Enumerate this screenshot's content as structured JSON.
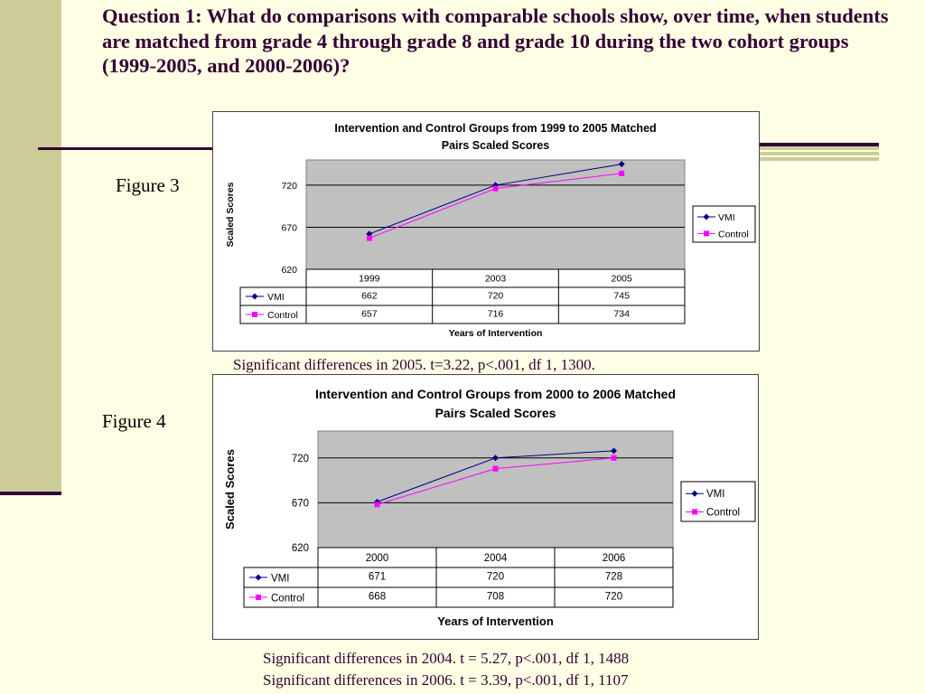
{
  "page_title": "Question 1:  What do comparisons with comparable schools show, over time, when students are matched from grade 4 through grade 8 and grade 10 during the two cohort groups (1999-2005, and 2000-2006)?",
  "figures": [
    {
      "label": "Figure 3",
      "notes": [
        "Significant differences in 2005.  t=3.22, p<.001, df 1, 1300."
      ]
    },
    {
      "label": "Figure 4",
      "notes": [
        "Significant differences in 2004. t = 5.27, p<.001, df 1, 1488",
        "Significant differences in 2006. t = 3.39, p<.001, df 1, 1107"
      ]
    }
  ],
  "chart_data": [
    {
      "type": "line",
      "title": [
        "Intervention and Control Groups from 1999 to 2005 Matched",
        "Pairs Scaled Scores"
      ],
      "xlabel": "Years of Intervention",
      "ylabel": "Scaled Scores",
      "categories": [
        "1999",
        "2003",
        "2005"
      ],
      "y_ticks": [
        620,
        670,
        720
      ],
      "ylim": [
        620,
        750
      ],
      "grid": true,
      "legend_position": "right",
      "data_table": true,
      "series": [
        {
          "name": "VMI",
          "values": [
            662,
            720,
            745
          ],
          "color": "#000080",
          "marker": "diamond"
        },
        {
          "name": "Control",
          "values": [
            657,
            716,
            734
          ],
          "color": "#ff00ff",
          "marker": "square"
        }
      ]
    },
    {
      "type": "line",
      "title": [
        "Intervention and Control Groups from 2000 to 2006 Matched",
        "Pairs Scaled Scores"
      ],
      "xlabel": "Years of Intervention",
      "ylabel": "Scaled Scores",
      "categories": [
        "2000",
        "2004",
        "2006"
      ],
      "y_ticks": [
        620,
        670,
        720
      ],
      "ylim": [
        620,
        750
      ],
      "grid": true,
      "legend_position": "right",
      "data_table": true,
      "series": [
        {
          "name": "VMI",
          "values": [
            671,
            720,
            728
          ],
          "color": "#000080",
          "marker": "diamond"
        },
        {
          "name": "Control",
          "values": [
            668,
            708,
            720
          ],
          "color": "#ff00ff",
          "marker": "square"
        }
      ]
    }
  ],
  "colors": {
    "background": "#ffffe5",
    "left_bar": "#cccc99",
    "accent_rule": "#330033",
    "plot_area": "#c0c0c0"
  }
}
